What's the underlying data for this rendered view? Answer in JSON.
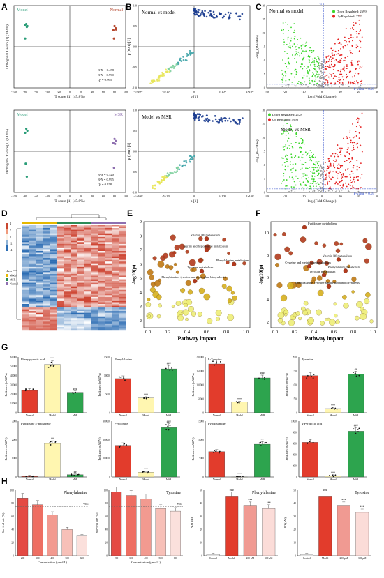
{
  "panels": {
    "A": "A",
    "B": "B",
    "C": "C",
    "D": "D",
    "E": "E",
    "F": "F",
    "G": "G",
    "H": "H"
  },
  "opls": [
    {
      "g1": "Model",
      "g2": "Normal",
      "xlabel": "T score [1] (45.8%)",
      "ylabel": "Orthogonal T score [1] (14.4%)",
      "stats": [
        "R²X = 0.458",
        "R²Y = 0.990",
        "Q² = 0.965"
      ],
      "xticks": [
        "-100",
        "-80",
        "-60",
        "-40",
        "-20",
        "0",
        "20",
        "40",
        "60",
        "80",
        "100"
      ],
      "g1_color": "#2a9d78",
      "g2_color": "#b5472e",
      "g1_points": [
        [
          -78,
          55
        ],
        [
          -76,
          50
        ],
        [
          -80,
          52
        ],
        [
          -77,
          48
        ],
        [
          -80,
          20
        ]
      ],
      "g2_points": [
        [
          80,
          50
        ],
        [
          82,
          45
        ],
        [
          78,
          40
        ],
        [
          83,
          42
        ],
        [
          79,
          20
        ]
      ]
    },
    {
      "g1": "Model",
      "g2": "MSR",
      "xlabel": "T score [1] (45.8%)",
      "ylabel": "Orthogonal T score [1] (14.4%)",
      "stats": [
        "R²X = 0.520",
        "R²Y = 0.995",
        "Q² = 0.978"
      ],
      "xticks": [
        "-100",
        "-80",
        "-60",
        "-40",
        "-20",
        "0",
        "20",
        "40",
        "60",
        "80",
        "100"
      ],
      "g1_color": "#2a9d78",
      "g2_color": "#8e6fb0",
      "g1_points": [
        [
          -78,
          55
        ],
        [
          -76,
          50
        ],
        [
          -80,
          45
        ],
        [
          -79,
          -30
        ],
        [
          -77,
          -62
        ]
      ],
      "g2_points": [
        [
          80,
          30
        ],
        [
          82,
          25
        ],
        [
          78,
          20
        ],
        [
          81,
          18
        ],
        [
          79,
          -40
        ]
      ]
    }
  ],
  "splot": [
    {
      "title": "Normal vs model",
      "xlabel": "p [1]",
      "ylabel": "p (corr) [1]",
      "xticks": [
        "-1×10¹⁰",
        "-5×10⁹",
        "0",
        "5×10⁹",
        "1×10¹⁰"
      ],
      "yticks": [
        "-1.0",
        "-0.5",
        "0.0",
        "0.5",
        "1.0"
      ]
    },
    {
      "title": "Model vs MSR",
      "xlabel": "p [1]",
      "ylabel": "p (corr) [1]",
      "xticks": [
        "-1×10¹⁰",
        "-5×10⁹",
        "0",
        "5×10⁹",
        "1×10¹⁰"
      ],
      "yticks": [
        "-1.0",
        "-0.5",
        "0.0",
        "0.5",
        "1.0"
      ]
    }
  ],
  "volcano": [
    {
      "title": "Normal vs model",
      "down": "Down Regulated: 2699",
      "up": "Up Regulated: 2743",
      "pv": "P-value = 0.05",
      "xlabel": "log₂(Fold Change)",
      "ylabel": "-log₁₀(P-value)",
      "xticks": [
        "-30",
        "-20",
        "-10",
        "0",
        "10",
        "20",
        "30"
      ],
      "yticks": [
        "0",
        "5",
        "10",
        "15",
        "20",
        "25",
        "30"
      ],
      "vline": "-1   1",
      "down_color": "#3bd62b",
      "up_color": "#e52020"
    },
    {
      "title": "Model vs MSR",
      "down": "Down Regulated: 2128",
      "up": "Up Regulated: 4998",
      "pv": "P-value = 0.05",
      "xlabel": "log₂(Fold Change)",
      "ylabel": "-log₁₀(P-value)",
      "xticks": [
        "-30",
        "-20",
        "-10",
        "0",
        "10",
        "20",
        "30"
      ],
      "yticks": [
        "0",
        "5",
        "10",
        "15",
        "20",
        "25",
        "30"
      ],
      "down_color": "#3bd62b",
      "up_color": "#e52020"
    }
  ],
  "heatmap": {
    "scale": [
      "4",
      "2",
      "0",
      "-2",
      "-4"
    ],
    "legend_title": "class",
    "classes": [
      "Model",
      "MSR",
      "Normal"
    ],
    "class_colors": [
      "#e6b800",
      "#2e8b57",
      "#8e6fb0"
    ]
  },
  "pathway": [
    {
      "xlabel": "Pathway impact",
      "ylabel": "-log10(p)",
      "xticks": [
        "0.0",
        "0.2",
        "0.4",
        "0.6",
        "0.8",
        "1.0"
      ],
      "yticks": [
        "2",
        "3",
        "4",
        "5",
        "6",
        "7",
        "8",
        "9"
      ],
      "labels": [
        "Vitamin B6 metabolism",
        "Taurine and hypotaurine metabolism",
        "Phenylalanine metabolism",
        "Tyrosine metabolism",
        "Phenylalanine, tyrosine and tryptophan biosynthesis"
      ]
    },
    {
      "xlabel": "Pathway impact",
      "ylabel": "-log10(p)",
      "xticks": [
        "0.0",
        "0.2",
        "0.4",
        "0.6",
        "0.8",
        "1.0"
      ],
      "yticks": [
        "2",
        "4",
        "6",
        "8",
        "10"
      ],
      "labels": [
        "Pyridoxine metabolism",
        "Vitamin B6 metabolism",
        "Cysteine and methionine metabolism",
        "Phenylalanine metabolism",
        "Tyrosine metabolism",
        "Phenylalanine, tyrosine and tryptophan biosynthesis"
      ]
    }
  ],
  "chart_data": [
    {
      "type": "bar",
      "title": "Phenylpyruvic acid",
      "ylabel": "Peak area (mAU*s)",
      "categories": [
        "Normal",
        "Model",
        "MSR"
      ],
      "values": [
        24000,
        52000,
        22000
      ],
      "sig": [
        "",
        "***",
        "###"
      ],
      "ylim": [
        0,
        60000
      ],
      "yticks": [
        "0",
        "10000",
        "20000",
        "30000",
        "40000",
        "50000",
        "60000"
      ]
    },
    {
      "type": "bar",
      "title": "Phenylalanine",
      "ylabel": "Peak area (mAU*s)",
      "categories": [
        "Normal",
        "Model",
        "MSR"
      ],
      "values": [
        9200,
        4000,
        11800
      ],
      "sig": [
        "",
        "***",
        "###"
      ],
      "ylim": [
        0,
        15000
      ],
      "yticks": [
        "0",
        "5000",
        "10000",
        "15000"
      ]
    },
    {
      "type": "bar",
      "title": "L-Tyrosine",
      "ylabel": "Peak area (mAU*s)",
      "categories": [
        "Normal",
        "Model",
        "MSR"
      ],
      "values": [
        175000,
        38000,
        125000
      ],
      "sig": [
        "",
        "***",
        "###"
      ],
      "ylim": [
        0,
        200000
      ],
      "yticks": [
        "0",
        "50000",
        "100000",
        "150000",
        "200000"
      ]
    },
    {
      "type": "bar",
      "title": "Tyramine",
      "ylabel": "Peak area (mAU*s)",
      "categories": [
        "Normal",
        "Model",
        "MSR"
      ],
      "values": [
        1330,
        150,
        1380
      ],
      "sig": [
        "",
        "***",
        "##"
      ],
      "ylim": [
        0,
        2000
      ],
      "yticks": [
        "0",
        "500",
        "1000",
        "1500",
        "2000"
      ]
    },
    {
      "type": "bar",
      "title": "Pyridoxine 5'-phosphate",
      "ylabel": "Peak area (mAU*s)",
      "categories": [
        "Normal",
        "Model",
        "MSR"
      ],
      "values": [
        30,
        1800,
        120
      ],
      "sig": [
        "",
        "**",
        "##"
      ],
      "ylim": [
        0,
        3000
      ],
      "yticks": [
        "0",
        "1000",
        "2000",
        "3000"
      ]
    },
    {
      "type": "bar",
      "title": "Pyridoxine",
      "ylabel": "Peak area (mAU*s)",
      "categories": [
        "Normal",
        "Model",
        "MSR"
      ],
      "values": [
        170000,
        25000,
        265000
      ],
      "sig": [
        "",
        "***",
        "###"
      ],
      "ylim": [
        0,
        300000
      ],
      "yticks": [
        "0",
        "100000",
        "200000",
        "300000"
      ]
    },
    {
      "type": "bar",
      "title": "Pyridoxamine",
      "ylabel": "Peak area (mAU*s)",
      "categories": [
        "Normal",
        "Model",
        "MSR"
      ],
      "values": [
        6800,
        0,
        8800
      ],
      "sig": [
        "",
        "***",
        "**"
      ],
      "ylim": [
        0,
        15000
      ],
      "yticks": [
        "0",
        "5000",
        "10000",
        "15000"
      ]
    },
    {
      "type": "bar",
      "title": "4-Pyridoxic acid",
      "ylabel": "Peak area (mAU*s)",
      "categories": [
        "Normal",
        "Model",
        "MSR"
      ],
      "values": [
        6200,
        200,
        8200
      ],
      "sig": [
        "",
        "***",
        "###"
      ],
      "ylim": [
        0,
        10000
      ],
      "yticks": [
        "0",
        "2000",
        "4000",
        "6000",
        "8000",
        "10000"
      ]
    },
    {
      "type": "bar",
      "title": "Phenylalanine",
      "ylabel": "Survival rate (%)",
      "xlabel": "Concentration (μmol/L)",
      "categories": [
        "200",
        "300",
        "400",
        "500",
        "600"
      ],
      "values": [
        88,
        78,
        62,
        40,
        30
      ],
      "ref_line": "75%",
      "ylim": [
        0,
        100
      ],
      "yticks": [
        "0",
        "20",
        "40",
        "60",
        "80",
        "100"
      ]
    },
    {
      "type": "bar",
      "title": "Tyrosine",
      "ylabel": "Survival rate (%)",
      "xlabel": "Concentration (μmol/L)",
      "categories": [
        "200",
        "300",
        "400",
        "500",
        "600"
      ],
      "values": [
        97,
        92,
        87,
        72,
        68
      ],
      "ref_line": "75%",
      "ylim": [
        0,
        100
      ],
      "yticks": [
        "0",
        "20",
        "40",
        "60",
        "80",
        "100"
      ]
    },
    {
      "type": "bar",
      "title": "Phenylalanine",
      "ylabel": "NO (μM)",
      "categories": [
        "Control",
        "Model",
        "200 μM",
        "300 μM"
      ],
      "values": [
        1,
        45,
        38,
        36
      ],
      "sig": [
        "",
        "###",
        "***",
        "***"
      ],
      "ylim": [
        0,
        50
      ],
      "yticks": [
        "0",
        "10",
        "20",
        "30",
        "40",
        "50"
      ]
    },
    {
      "type": "bar",
      "title": "Tyrosine",
      "ylabel": "NO (μM)",
      "categories": [
        "Control",
        "Model",
        "200 μM",
        "300 μM"
      ],
      "values": [
        1,
        45,
        38,
        33
      ],
      "sig": [
        "",
        "###",
        "***",
        "***"
      ],
      "ylim": [
        0,
        50
      ],
      "yticks": [
        "0",
        "10",
        "20",
        "30",
        "40",
        "50"
      ]
    }
  ],
  "colors": {
    "normal": "#e23c2c",
    "model": "#fff6b0",
    "msr": "#2da44e",
    "h_red": [
      "#e44a44",
      "#ee6e62",
      "#f29a90",
      "#f7c0b8",
      "#fbe0dc"
    ],
    "h_no": [
      "#ffffff",
      "#e23c2c",
      "#f09a92",
      "#fbdcd8"
    ]
  }
}
